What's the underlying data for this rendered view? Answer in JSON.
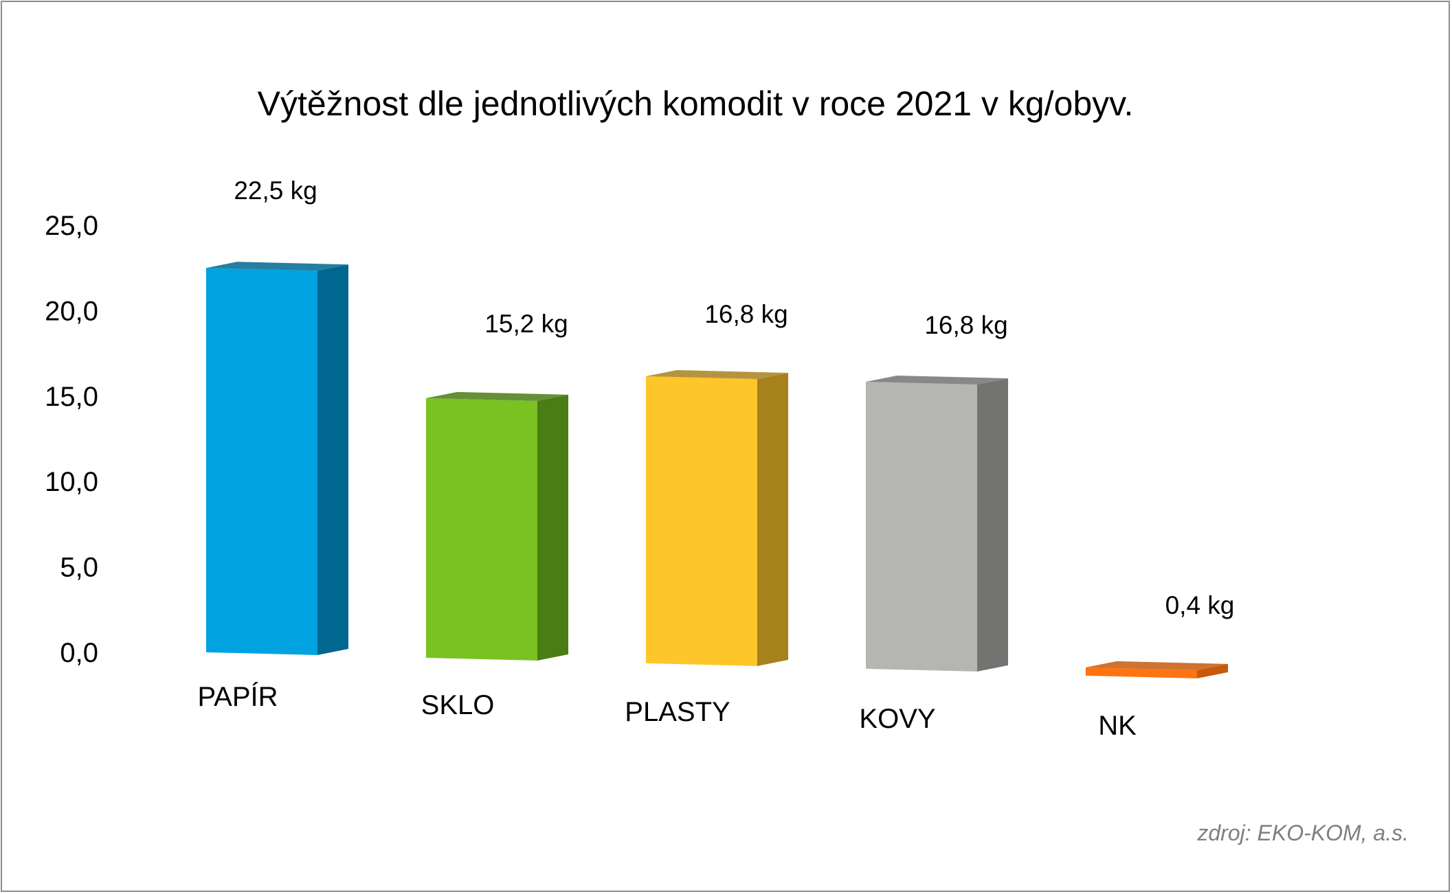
{
  "chart_data": {
    "type": "bar",
    "title": "Výtěžnost dle jednotlivých komodit v roce 2021 v kg/obyv.",
    "categories": [
      "PAPÍR",
      "SKLO",
      "PLASTY",
      "KOVY",
      "NK"
    ],
    "values": [
      22.5,
      15.2,
      16.8,
      16.8,
      0.4
    ],
    "data_labels": [
      "22,5 kg",
      "15,2 kg",
      "16,8 kg",
      "16,8 kg",
      "0,4 kg"
    ],
    "colors": [
      "#00a3e0",
      "#7ac122",
      "#ffc629",
      "#b5b6b2",
      "#ff7311"
    ],
    "side_colors": [
      "#006791",
      "#4a7d14",
      "#a7811c",
      "#737472",
      "#c65a0c"
    ],
    "yticks": [
      "0,0",
      "5,0",
      "10,0",
      "15,0",
      "20,0",
      "25,0"
    ],
    "ylim": [
      0,
      25
    ],
    "xlabel": "",
    "ylabel": "",
    "grid": false,
    "legend": "none"
  },
  "source": "zdroj: EKO-KOM, a.s."
}
